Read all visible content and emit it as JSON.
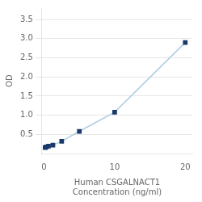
{
  "chart_data": {
    "type": "line",
    "xlabel": "Human CSGALNACT1\nConcentration (ng/ml)",
    "ylabel": "OD",
    "x": [
      0.156,
      0.313,
      0.625,
      1.25,
      2.5,
      5,
      10,
      20
    ],
    "series": [
      {
        "values": [
          0.158,
          0.172,
          0.191,
          0.22,
          0.32,
          0.58,
          1.08,
          2.9
        ],
        "color": "#aecde0",
        "colors": [
          "#1a3a6b",
          "#1a3a6b",
          "#1a3a6b",
          "#1a3a6b",
          "#1a3a6b",
          "#1a3a6b",
          "#1a3a6b",
          "#1a3a6b"
        ],
        "marker": "square"
      }
    ],
    "xlim": [
      -0.3,
      21
    ],
    "ylim": [
      0,
      3.8
    ],
    "xticks": [
      0,
      10,
      20
    ],
    "yticks": [
      0.5,
      {
        "value": 1.0,
        "label": "1.0"
      },
      1.5,
      {
        "value": 2.0,
        "label": "2.0"
      },
      2.5,
      {
        "value": 3.0,
        "label": "3.0"
      },
      3.5
    ],
    "grid": "y"
  }
}
